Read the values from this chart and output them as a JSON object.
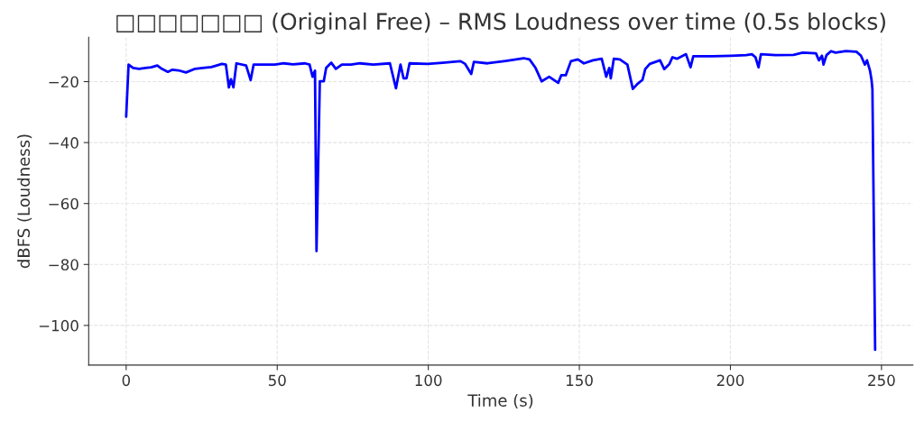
{
  "chart_data": {
    "type": "line",
    "title": "□□□□□□□ (Original Free) – RMS Loudness over time (0.5s blocks)",
    "xlabel": "Time (s)",
    "ylabel": "dBFS (Loudness)",
    "xlim": [
      -12.4,
      260.4
    ],
    "ylim": [
      -113,
      -5.4
    ],
    "xticks": [
      0,
      50,
      100,
      150,
      200,
      250
    ],
    "yticks": [
      -100,
      -80,
      -60,
      -40,
      -20
    ],
    "grid": true,
    "series": [
      {
        "color": "#0000ff",
        "x": [
          0,
          0.8,
          2.3,
          4.3,
          6.3,
          8.3,
          10.3,
          11.8,
          13.8,
          15.3,
          17.3,
          19.8,
          22.8,
          25.3,
          28.2,
          31.7,
          33.0,
          34.0,
          34.7,
          35.5,
          36.5,
          39.7,
          41.2,
          42.2,
          45.2,
          49.2,
          52.2,
          55.2,
          59.2,
          60.7,
          61.7,
          62.5,
          63.0,
          64.1,
          65.4,
          66.2,
          67.9,
          69.4,
          71.4,
          74.4,
          77.4,
          81.8,
          87.3,
          89.3,
          90.8,
          91.8,
          92.8,
          93.8,
          99.8,
          104.7,
          110.7,
          112.2,
          114.2,
          115.1,
          119.6,
          125.6,
          131.5,
          133.5,
          135.5,
          137.5,
          140.0,
          143.0,
          144.0,
          145.5,
          147.2,
          149.5,
          151.5,
          154.5,
          157.4,
          158.9,
          159.9,
          160.4,
          161.4,
          163.4,
          165.9,
          167.7,
          169.4,
          170.9,
          171.8,
          173.3,
          176.7,
          178.1,
          179.8,
          180.8,
          182.3,
          185.3,
          186.8,
          187.7,
          191.2,
          194.2,
          200.2,
          205.2,
          207.1,
          208.3,
          209.3,
          210.1,
          214.9,
          220.9,
          223.9,
          228.3,
          229.3,
          230.3,
          230.8,
          231.8,
          233.3,
          234.8,
          238.2,
          241.7,
          243.2,
          244.5,
          245.2,
          246.2,
          246.7,
          247.0,
          247.9
        ],
        "values": [
          -31.5,
          -14.4,
          -15.5,
          -15.8,
          -15.5,
          -15.3,
          -14.7,
          -15.8,
          -16.8,
          -16.1,
          -16.3,
          -17.0,
          -15.8,
          -15.5,
          -15.2,
          -14.2,
          -14.4,
          -21.9,
          -19.2,
          -21.9,
          -14.0,
          -14.7,
          -19.5,
          -14.4,
          -14.4,
          -14.4,
          -14.0,
          -14.3,
          -14.0,
          -14.4,
          -18.4,
          -16.4,
          -75.6,
          -19.9,
          -19.9,
          -15.5,
          -13.8,
          -15.8,
          -14.4,
          -14.4,
          -14.0,
          -14.4,
          -14.0,
          -22.2,
          -14.4,
          -18.9,
          -18.9,
          -14.0,
          -14.2,
          -13.8,
          -13.3,
          -14.2,
          -17.5,
          -13.5,
          -14.0,
          -13.2,
          -12.3,
          -12.7,
          -15.5,
          -19.9,
          -18.4,
          -20.4,
          -17.9,
          -17.9,
          -13.3,
          -12.7,
          -14.0,
          -13.0,
          -12.5,
          -18.4,
          -15.5,
          -18.9,
          -12.5,
          -12.7,
          -14.4,
          -22.4,
          -20.6,
          -19.4,
          -15.9,
          -14.2,
          -13.0,
          -15.9,
          -14.2,
          -12.0,
          -12.5,
          -11.0,
          -15.3,
          -11.7,
          -11.7,
          -11.7,
          -11.5,
          -11.3,
          -11.0,
          -12.0,
          -15.3,
          -11.0,
          -11.3,
          -11.2,
          -10.5,
          -10.7,
          -13.0,
          -11.5,
          -14.4,
          -11.3,
          -10.0,
          -10.5,
          -10.0,
          -10.2,
          -11.5,
          -14.4,
          -13.0,
          -16.4,
          -19.4,
          -22.5,
          -108.0
        ]
      }
    ]
  }
}
